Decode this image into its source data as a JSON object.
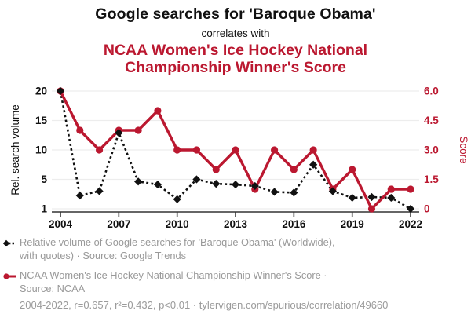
{
  "colors": {
    "accent_red": "#bb1830",
    "series_black": "#111111",
    "legend_gray": "#999999",
    "grid_gray": "#ededed",
    "axis_gray": "#333333"
  },
  "chart_data": {
    "type": "line",
    "title": "Google searches for 'Baroque Obama'",
    "subtitle": "correlates with",
    "title2": "NCAA Women's Ice Hockey National Championship Winner's Score",
    "x": [
      2004,
      2005,
      2006,
      2007,
      2008,
      2009,
      2010,
      2011,
      2012,
      2013,
      2014,
      2015,
      2016,
      2017,
      2018,
      2019,
      2020,
      2021,
      2022
    ],
    "x_tick_years": [
      2004,
      2007,
      2010,
      2013,
      2016,
      2019,
      2022
    ],
    "x_tick_labels": [
      "2004",
      "2007",
      "2010",
      "2013",
      "2016",
      "2019",
      "2022"
    ],
    "grid": true,
    "legend_position": "bottom",
    "left_axis": {
      "label": "Rel. search volume",
      "tick_values": [
        20,
        15,
        10,
        5,
        1
      ],
      "tick_labels": [
        "20",
        "15",
        "10",
        "5",
        "1"
      ]
    },
    "right_axis": {
      "label": "Score",
      "tick_values": [
        6,
        4.5,
        3,
        1.5,
        0
      ],
      "tick_labels": [
        "6.0",
        "4.5",
        "3.0",
        "1.5",
        "0"
      ],
      "min": 0,
      "max": 6
    },
    "series": [
      {
        "name": "Relative volume of Google searches for 'Baroque Obama'",
        "axis": "left",
        "style": "dotted",
        "marker": "diamond",
        "color": "#111111",
        "values": [
          20,
          2.8,
          3.4,
          12.9,
          4.7,
          4.3,
          2.3,
          5,
          4.4,
          4.3,
          4.1,
          3.3,
          3.2,
          7.5,
          3.4,
          2.5,
          2.6,
          2.5,
          1
        ]
      },
      {
        "name": "NCAA Women's Ice Hockey National Championship Winner's Score",
        "axis": "right",
        "style": "solid",
        "marker": "circle",
        "color": "#bb1830",
        "values": [
          6,
          4,
          3,
          4,
          4,
          5,
          3,
          3,
          2,
          3,
          1,
          3,
          2,
          3,
          1,
          2,
          0,
          1,
          1
        ]
      }
    ]
  },
  "legend": {
    "items": [
      {
        "series": "google-trends",
        "line1": "Relative volume of Google searches for 'Baroque Obama' (Worldwide),",
        "line2": "with quotes) · Source: Google Trends"
      },
      {
        "series": "ncaa-score",
        "line1": "NCAA Women's Ice Hockey National Championship Winner's Score ·",
        "line2": "Source: NCAA"
      }
    ]
  },
  "footer": {
    "text": "2004-2022, r=0.657, r²=0.432, p<0.01 · tylervigen.com/spurious/correlation/49660"
  }
}
